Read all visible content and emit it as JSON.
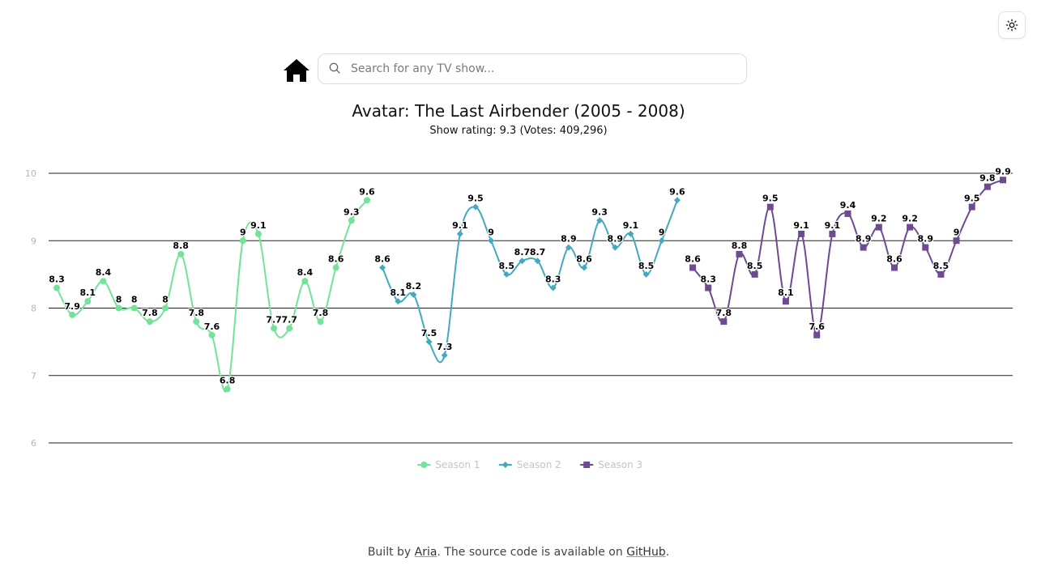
{
  "header": {
    "theme_toggle_icon": "sun-icon",
    "home_icon": "home-icon",
    "search": {
      "placeholder": "Search for any TV show...",
      "value": "",
      "icon": "search-icon"
    }
  },
  "show": {
    "title": "Avatar: The Last Airbender (2005 - 2008)",
    "rating_label": "Show rating:",
    "rating": "9.3",
    "votes_label": "(Votes:",
    "votes": "409,296",
    "votes_close": ")"
  },
  "chart_data": {
    "type": "line",
    "title": "",
    "xlabel": "",
    "ylabel": "",
    "ylim": [
      6,
      10
    ],
    "yticks": [
      "6",
      "7",
      "8",
      "9",
      "10"
    ],
    "grid": true,
    "legend_position": "bottom",
    "series": [
      {
        "name": "Season 1",
        "color": "#74e39a",
        "marker": "circle",
        "values": [
          8.3,
          7.9,
          8.1,
          8.4,
          8,
          8,
          7.8,
          8,
          8.8,
          7.8,
          7.6,
          6.8,
          9,
          9.1,
          7.7,
          7.7,
          8.4,
          7.8,
          8.6,
          9.3,
          9.6
        ]
      },
      {
        "name": "Season 2",
        "color": "#42a9bf",
        "marker": "diamond",
        "values": [
          8.6,
          8.1,
          8.2,
          7.5,
          7.3,
          9.1,
          9.5,
          9,
          8.5,
          8.7,
          8.7,
          8.3,
          8.9,
          8.6,
          9.3,
          8.9,
          9.1,
          8.5,
          9,
          9.6
        ]
      },
      {
        "name": "Season 3",
        "color": "#6e4a93",
        "marker": "square",
        "values": [
          8.6,
          8.3,
          7.8,
          8.8,
          8.5,
          9.5,
          8.1,
          9.1,
          7.6,
          9.1,
          9.4,
          8.9,
          9.2,
          8.6,
          9.2,
          8.9,
          8.5,
          9,
          9.5,
          9.8,
          9.9
        ]
      }
    ]
  },
  "footer": {
    "prefix": "Built by",
    "author_link": "Aria",
    "middle": ". The source code is available on",
    "source_link": "GitHub",
    "suffix": "."
  }
}
